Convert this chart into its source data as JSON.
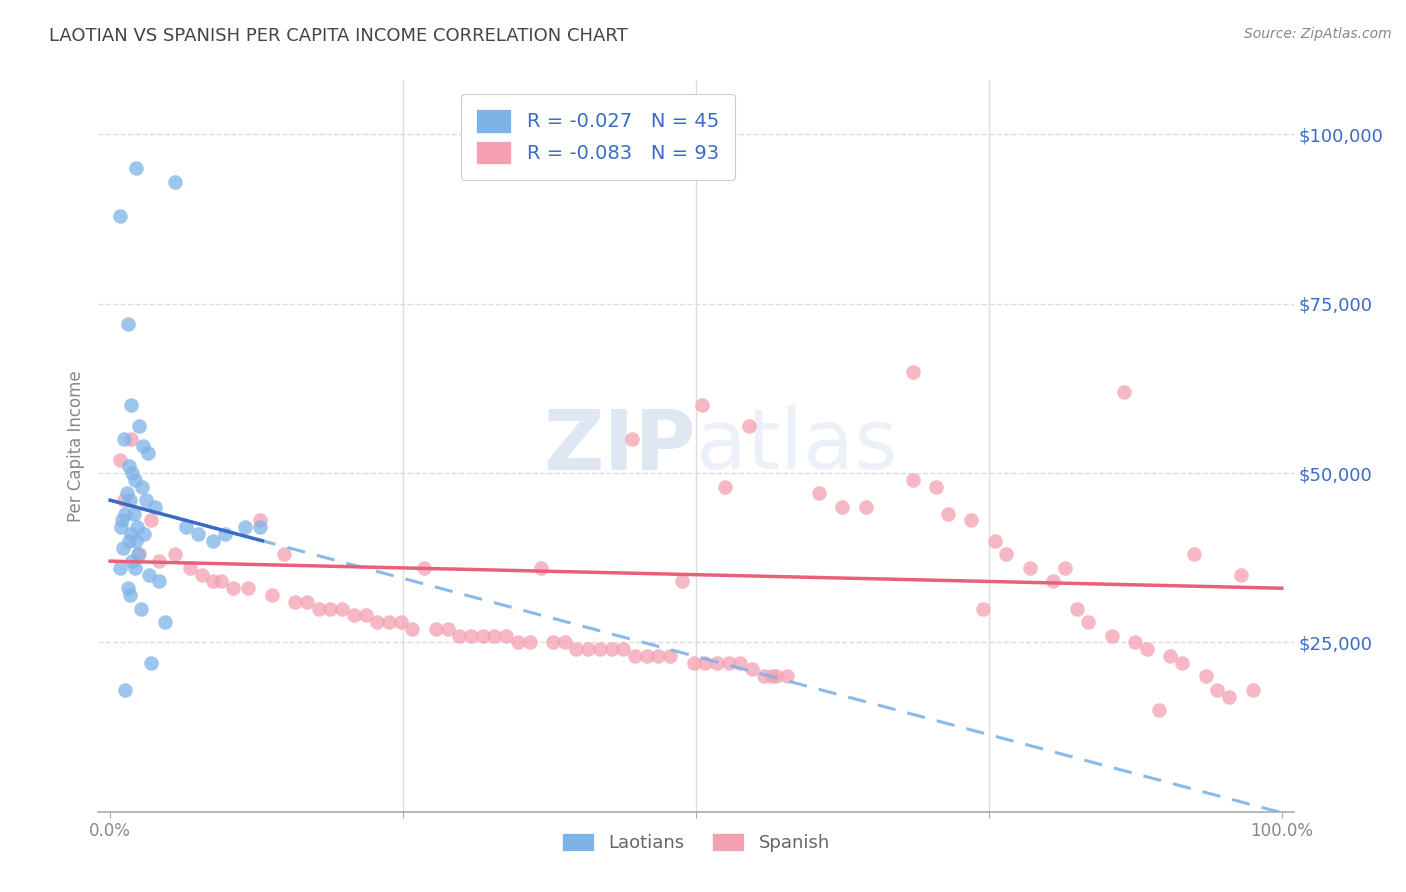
{
  "title": "LAOTIAN VS SPANISH PER CAPITA INCOME CORRELATION CHART",
  "source": "Source: ZipAtlas.com",
  "ylabel": "Per Capita Income",
  "ymin": 0,
  "ymax": 108000,
  "xmin": -0.01,
  "xmax": 1.01,
  "watermark_zip": "ZIP",
  "watermark_atlas": "atlas",
  "blue_color": "#7EB3E8",
  "pink_color": "#F4A0B0",
  "blue_line_color": "#3A6CC4",
  "pink_line_color": "#E8607A",
  "blue_dashed_color": "#7EB3E8",
  "title_color": "#444444",
  "source_color": "#888888",
  "ylabel_color": "#888888",
  "tick_color": "#888888",
  "ytick_color": "#3A6CC4",
  "grid_color": "#DDDDDD",
  "legend_text_color": "#3A6CC4",
  "legend_border_color": "#CCCCCC",
  "bottom_legend_color": "#666666",
  "laotian_x": [
    0.022,
    0.055,
    0.008,
    0.015,
    0.018,
    0.025,
    0.012,
    0.028,
    0.032,
    0.016,
    0.019,
    0.021,
    0.027,
    0.014,
    0.017,
    0.031,
    0.038,
    0.02,
    0.013,
    0.01,
    0.009,
    0.023,
    0.029,
    0.018,
    0.016,
    0.022,
    0.011,
    0.024,
    0.019,
    0.021,
    0.065,
    0.075,
    0.088,
    0.098,
    0.115,
    0.128,
    0.008,
    0.033,
    0.042,
    0.015,
    0.017,
    0.026,
    0.047,
    0.035,
    0.013
  ],
  "laotian_y": [
    95000,
    93000,
    88000,
    72000,
    60000,
    57000,
    55000,
    54000,
    53000,
    51000,
    50000,
    49000,
    48000,
    47000,
    46000,
    46000,
    45000,
    44000,
    44000,
    43000,
    42000,
    42000,
    41000,
    41000,
    40000,
    40000,
    39000,
    38000,
    37000,
    36000,
    42000,
    41000,
    40000,
    41000,
    42000,
    42000,
    36000,
    35000,
    34000,
    33000,
    32000,
    30000,
    28000,
    22000,
    18000
  ],
  "spanish_x": [
    0.018,
    0.025,
    0.035,
    0.012,
    0.008,
    0.042,
    0.055,
    0.068,
    0.078,
    0.088,
    0.095,
    0.105,
    0.118,
    0.128,
    0.138,
    0.148,
    0.158,
    0.168,
    0.178,
    0.188,
    0.198,
    0.208,
    0.218,
    0.228,
    0.238,
    0.248,
    0.258,
    0.268,
    0.278,
    0.288,
    0.298,
    0.308,
    0.318,
    0.328,
    0.338,
    0.348,
    0.358,
    0.368,
    0.378,
    0.388,
    0.398,
    0.408,
    0.418,
    0.428,
    0.438,
    0.448,
    0.458,
    0.468,
    0.478,
    0.488,
    0.498,
    0.508,
    0.518,
    0.528,
    0.538,
    0.548,
    0.558,
    0.568,
    0.578,
    0.445,
    0.505,
    0.525,
    0.545,
    0.565,
    0.605,
    0.625,
    0.645,
    0.685,
    0.705,
    0.715,
    0.735,
    0.755,
    0.765,
    0.785,
    0.805,
    0.825,
    0.835,
    0.855,
    0.875,
    0.885,
    0.905,
    0.915,
    0.935,
    0.945,
    0.955,
    0.865,
    0.895,
    0.925,
    0.685,
    0.745,
    0.815,
    0.965,
    0.975
  ],
  "spanish_y": [
    55000,
    38000,
    43000,
    46000,
    52000,
    37000,
    38000,
    36000,
    35000,
    34000,
    34000,
    33000,
    33000,
    43000,
    32000,
    38000,
    31000,
    31000,
    30000,
    30000,
    30000,
    29000,
    29000,
    28000,
    28000,
    28000,
    27000,
    36000,
    27000,
    27000,
    26000,
    26000,
    26000,
    26000,
    26000,
    25000,
    25000,
    36000,
    25000,
    25000,
    24000,
    24000,
    24000,
    24000,
    24000,
    23000,
    23000,
    23000,
    23000,
    34000,
    22000,
    22000,
    22000,
    22000,
    22000,
    21000,
    20000,
    20000,
    20000,
    55000,
    60000,
    48000,
    57000,
    20000,
    47000,
    45000,
    45000,
    65000,
    48000,
    44000,
    43000,
    40000,
    38000,
    36000,
    34000,
    30000,
    28000,
    26000,
    25000,
    24000,
    23000,
    22000,
    20000,
    18000,
    17000,
    62000,
    15000,
    38000,
    49000,
    30000,
    36000,
    35000,
    18000
  ]
}
